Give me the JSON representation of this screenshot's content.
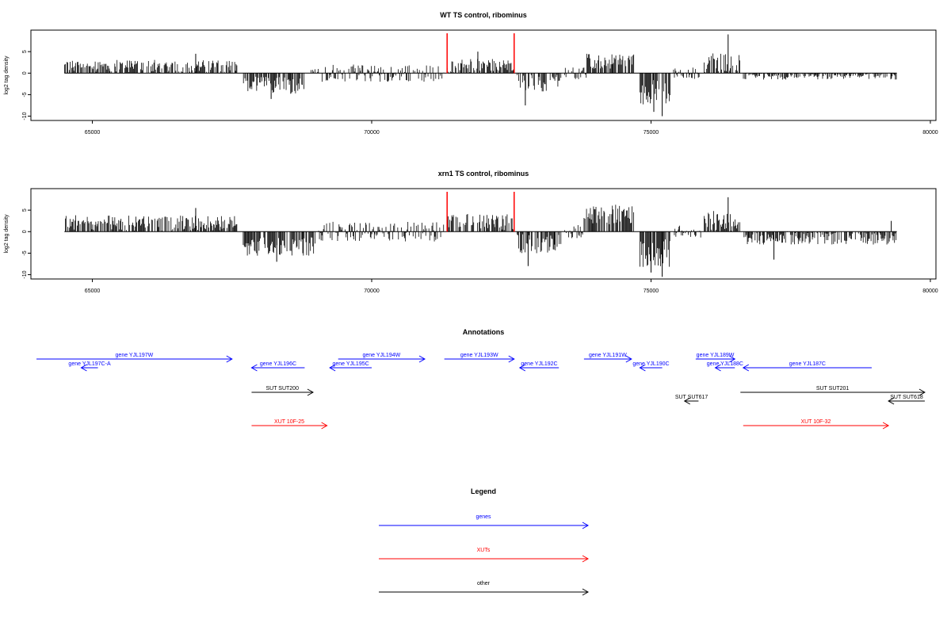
{
  "chart_data": [
    {
      "type": "bar",
      "title": "WT TS control, ribominus",
      "ylabel": "log2 tag density",
      "xlim": [
        63900,
        80100
      ],
      "ylim": [
        -11,
        10
      ],
      "xticks": [
        65000,
        70000,
        75000,
        80000
      ],
      "yticks": [
        -10,
        -5,
        0,
        5
      ],
      "markers": [
        71350,
        72550
      ],
      "marker_color": "#ff0000",
      "baseline_range": [
        64500,
        79400
      ],
      "segments": [
        {
          "start": 64500,
          "end": 67600,
          "mean": 1.6,
          "amp": 1.5
        },
        {
          "start": 67700,
          "end": 68800,
          "mean": -2.8,
          "amp": 2.0
        },
        {
          "start": 68900,
          "end": 71300,
          "mean": 0.2,
          "amp": 1.2
        },
        {
          "start": 71350,
          "end": 72550,
          "mean": 1.5,
          "amp": 1.8
        },
        {
          "start": 72600,
          "end": 73400,
          "mean": -2.4,
          "amp": 2.0
        },
        {
          "start": 73450,
          "end": 73850,
          "mean": 0.1,
          "amp": 0.6
        },
        {
          "start": 73850,
          "end": 74700,
          "mean": 2.8,
          "amp": 1.8
        },
        {
          "start": 74800,
          "end": 75350,
          "mean": -4.5,
          "amp": 3.0
        },
        {
          "start": 75400,
          "end": 75900,
          "mean": 0.2,
          "amp": 0.6
        },
        {
          "start": 75950,
          "end": 76600,
          "mean": 2.4,
          "amp": 2.2
        },
        {
          "start": 76650,
          "end": 79400,
          "mean": -0.6,
          "amp": 0.9
        }
      ],
      "spikes": [
        [
          76380,
          9
        ],
        [
          75200,
          -10
        ],
        [
          75050,
          -9
        ],
        [
          68200,
          -6
        ],
        [
          72750,
          -7.5
        ],
        [
          66850,
          4.5
        ],
        [
          71900,
          5
        ]
      ]
    },
    {
      "type": "bar",
      "title": "xrn1 TS control, ribominus",
      "ylabel": "log2 tag density",
      "xlim": [
        63900,
        80100
      ],
      "ylim": [
        -11,
        10
      ],
      "xticks": [
        65000,
        70000,
        75000,
        80000
      ],
      "yticks": [
        -10,
        -5,
        0,
        5
      ],
      "markers": [
        71350,
        72550
      ],
      "marker_color": "#ff0000",
      "baseline_range": [
        64500,
        79400
      ],
      "segments": [
        {
          "start": 64500,
          "end": 67600,
          "mean": 2.0,
          "amp": 1.8
        },
        {
          "start": 67700,
          "end": 69000,
          "mean": -3.5,
          "amp": 2.3
        },
        {
          "start": 69050,
          "end": 71300,
          "mean": 0.4,
          "amp": 1.5
        },
        {
          "start": 71350,
          "end": 72550,
          "mean": 2.2,
          "amp": 1.9
        },
        {
          "start": 72600,
          "end": 73400,
          "mean": -2.8,
          "amp": 2.2
        },
        {
          "start": 73450,
          "end": 73800,
          "mean": 0.2,
          "amp": 0.8
        },
        {
          "start": 73800,
          "end": 74700,
          "mean": 4.0,
          "amp": 2.3
        },
        {
          "start": 74800,
          "end": 75350,
          "mean": -5.0,
          "amp": 3.2
        },
        {
          "start": 75400,
          "end": 75900,
          "mean": 0.3,
          "amp": 0.7
        },
        {
          "start": 75950,
          "end": 76600,
          "mean": 2.5,
          "amp": 2.3
        },
        {
          "start": 76650,
          "end": 79400,
          "mean": -1.5,
          "amp": 1.5
        }
      ],
      "spikes": [
        [
          76380,
          8
        ],
        [
          75200,
          -10.5
        ],
        [
          75000,
          -9.5
        ],
        [
          68300,
          -7
        ],
        [
          72800,
          -8
        ],
        [
          66850,
          5.5
        ],
        [
          77200,
          -6.5
        ],
        [
          79300,
          2.5
        ]
      ]
    }
  ],
  "annotations": {
    "title": "Annotations",
    "xlim": [
      63900,
      80100
    ],
    "features": [
      {
        "label": "gene YJL197W",
        "start": 64000,
        "end": 67500,
        "strand": "+",
        "row": 0,
        "color": "#0000ff"
      },
      {
        "label": "gene YJL197C-A",
        "start": 64800,
        "end": 65100,
        "strand": "-",
        "row": 1,
        "color": "#0000ff"
      },
      {
        "label": "gene YJL196C",
        "start": 67850,
        "end": 68800,
        "strand": "-",
        "row": 1,
        "color": "#0000ff"
      },
      {
        "label": "gene YJL195C",
        "start": 69250,
        "end": 70000,
        "strand": "-",
        "row": 1,
        "color": "#0000ff"
      },
      {
        "label": "gene YJL194W",
        "start": 69400,
        "end": 70950,
        "strand": "+",
        "row": 0,
        "color": "#0000ff"
      },
      {
        "label": "gene YJL193W",
        "start": 71300,
        "end": 72550,
        "strand": "+",
        "row": 0,
        "color": "#0000ff"
      },
      {
        "label": "gene YJL192C",
        "start": 72650,
        "end": 73350,
        "strand": "-",
        "row": 1,
        "color": "#0000ff"
      },
      {
        "label": "gene YJL191W",
        "start": 73800,
        "end": 74650,
        "strand": "+",
        "row": 0,
        "color": "#0000ff"
      },
      {
        "label": "gene YJL190C",
        "start": 74800,
        "end": 75200,
        "strand": "-",
        "row": 1,
        "color": "#0000ff"
      },
      {
        "label": "gene YJL189W",
        "start": 75800,
        "end": 76500,
        "strand": "+",
        "row": 0,
        "color": "#0000ff"
      },
      {
        "label": "gene YJL188C",
        "start": 76150,
        "end": 76500,
        "strand": "-",
        "row": 1,
        "color": "#0000ff"
      },
      {
        "label": "gene YJL187C",
        "start": 76650,
        "end": 78950,
        "strand": "-",
        "row": 1,
        "color": "#0000ff"
      },
      {
        "label": "SUT SUT200",
        "start": 67850,
        "end": 68950,
        "strand": "+",
        "row": 2,
        "color": "#000000"
      },
      {
        "label": "SUT SUT617",
        "start": 75600,
        "end": 75850,
        "strand": "-",
        "row": 3,
        "color": "#000000"
      },
      {
        "label": "SUT SUT201",
        "start": 76600,
        "end": 79900,
        "strand": "+",
        "row": 2,
        "color": "#000000"
      },
      {
        "label": "SUT SUT618",
        "start": 79250,
        "end": 79900,
        "strand": "-",
        "row": 3,
        "color": "#000000"
      },
      {
        "label": "XUT 10F-25",
        "start": 67850,
        "end": 69200,
        "strand": "+",
        "row": 4,
        "color": "#ff0000"
      },
      {
        "label": "XUT 10F-32",
        "start": 76650,
        "end": 79250,
        "strand": "+",
        "row": 4,
        "color": "#ff0000"
      }
    ]
  },
  "legend": {
    "title": "Legend",
    "items": [
      {
        "label": "genes",
        "color": "#0000ff"
      },
      {
        "label": "XUTs",
        "color": "#ff0000"
      },
      {
        "label": "other",
        "color": "#000000"
      }
    ]
  }
}
